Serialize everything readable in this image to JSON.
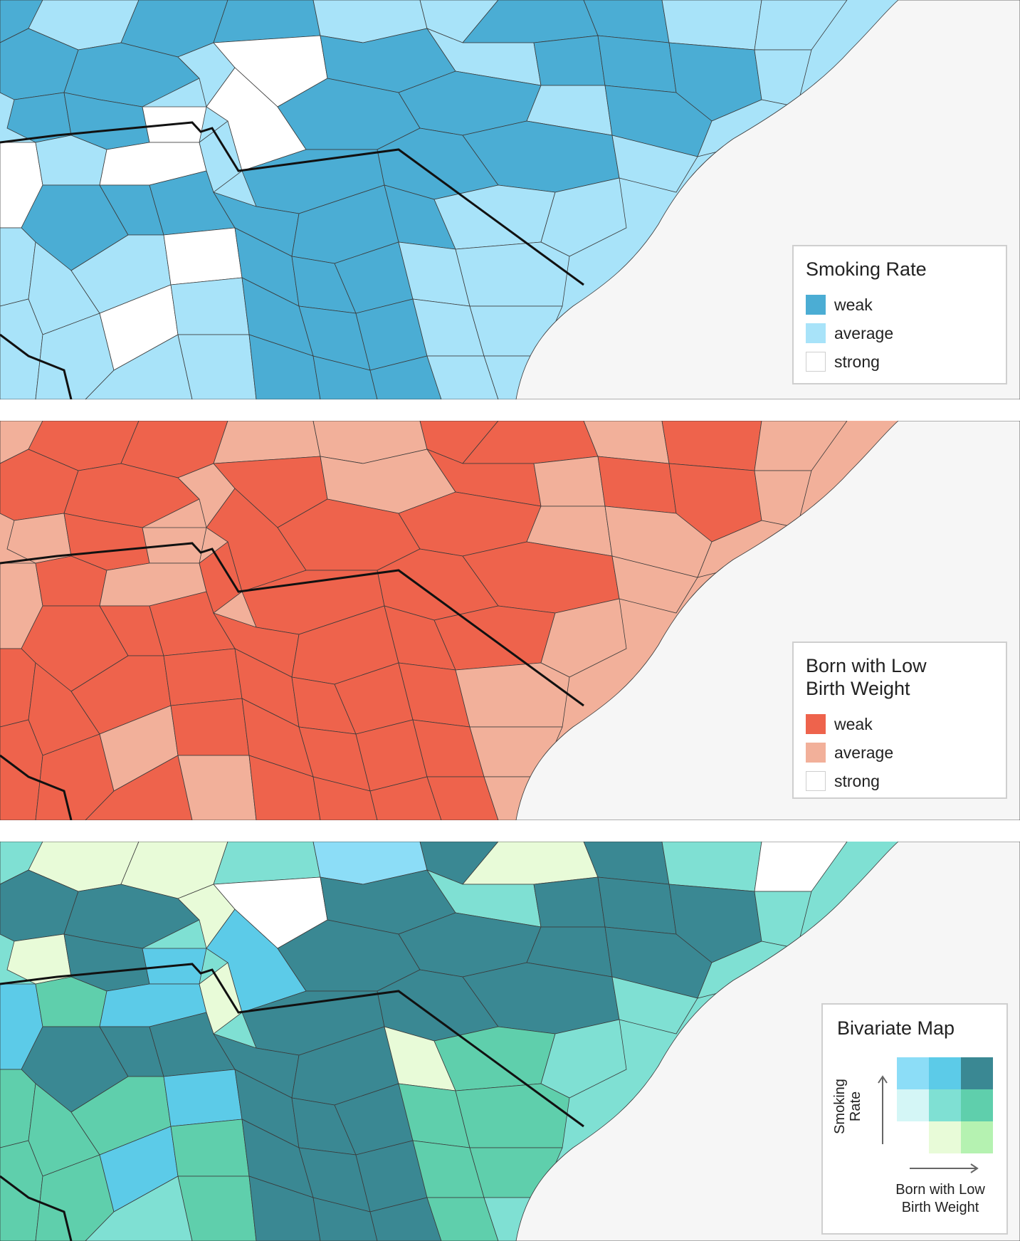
{
  "colors": {
    "water": "#f6f6f6",
    "border": "#111111",
    "county_line": "#3a3a3a"
  },
  "panels": [
    {
      "id": "smoking",
      "legend": {
        "title": "Smoking Rate",
        "items": [
          {
            "label": "weak",
            "color": "#4badd4"
          },
          {
            "label": "average",
            "color": "#a8e3f9"
          },
          {
            "label": "strong",
            "color": "#ffffff"
          }
        ]
      }
    },
    {
      "id": "birth_weight",
      "legend": {
        "title": "Born with Low Birth Weight",
        "items": [
          {
            "label": "weak",
            "color": "#ee634c"
          },
          {
            "label": "average",
            "color": "#f2b09a"
          },
          {
            "label": "strong",
            "color": "#ffffff"
          }
        ]
      }
    },
    {
      "id": "bivariate",
      "legend": {
        "title": "Bivariate Map",
        "y_label": "Smoking Rate",
        "x_label": "Born with Low Birth Weight",
        "grid": [
          [
            "#8cddf7",
            "#5ccbe8",
            "#3a8893"
          ],
          [
            "#d4f6f6",
            "#7fe0d3",
            "#5fcfac"
          ],
          [
            "#ffffff",
            "#e8fbd8",
            "#b5f2b1"
          ]
        ]
      }
    }
  ]
}
